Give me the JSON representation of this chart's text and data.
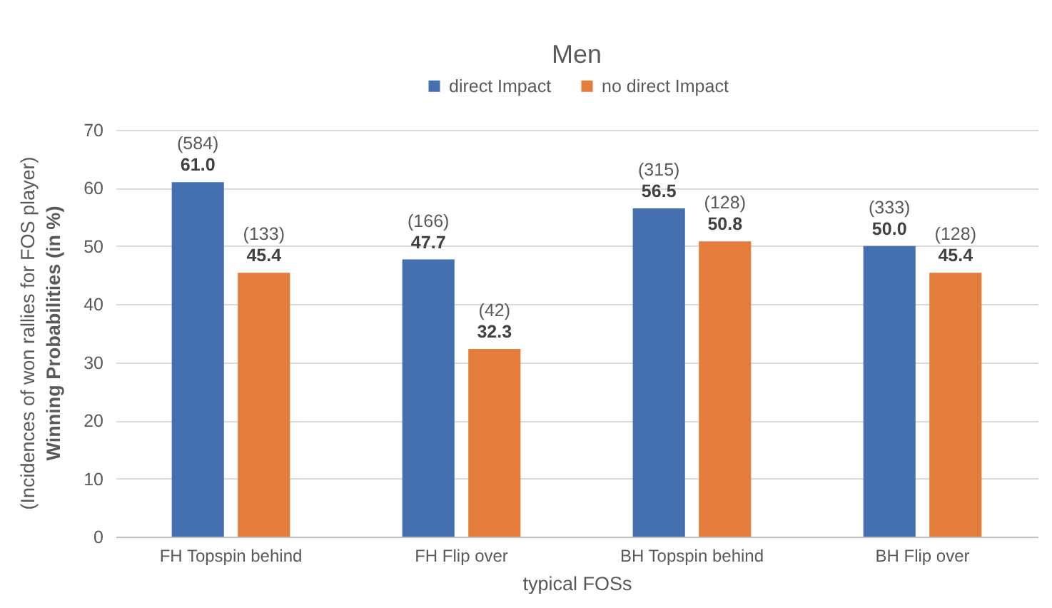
{
  "chart_data": {
    "type": "bar",
    "title": "Men",
    "categories": [
      "FH Topspin behind",
      "FH Flip over",
      "BH Topspin behind",
      "BH Flip over"
    ],
    "series": [
      {
        "name": "direct Impact",
        "color": "#4470b0",
        "values": [
          61.0,
          47.7,
          56.5,
          50.0
        ],
        "value_labels": [
          "(584)\n61.0",
          "(166)\n47.7",
          "(315)\n56.5",
          "(333)\n50.0"
        ]
      },
      {
        "name": "no direct Impact",
        "color": "#e47c3c",
        "values": [
          45.4,
          32.3,
          50.8,
          45.4
        ],
        "value_labels": [
          "(133)\n45.4",
          "(42)\n32.3",
          "(128)\n50.8",
          "(128)\n45.4"
        ]
      }
    ],
    "xlabel": "typical FOSs",
    "ylabel": "(Incidences of won rallies for FOS player)\nWinning Probabilities (in %)",
    "ylim": [
      0,
      70
    ],
    "yticks": [
      0,
      10,
      20,
      30,
      40,
      50,
      60,
      70
    ],
    "grid": "y",
    "legend": "top"
  }
}
